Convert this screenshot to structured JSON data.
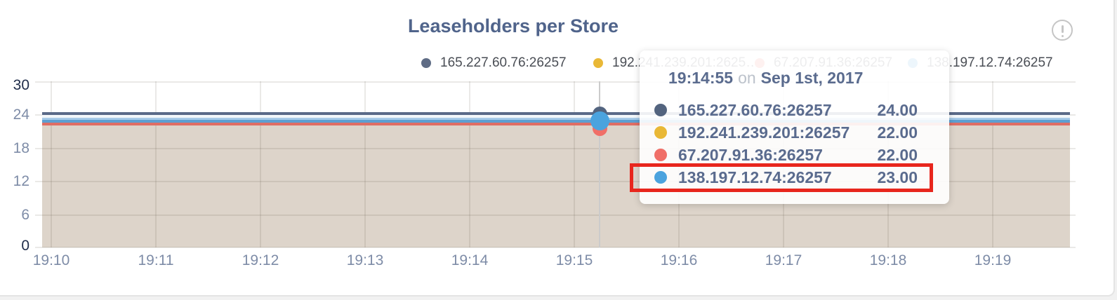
{
  "header": {
    "title": "Leaseholders per Store"
  },
  "legend": {
    "items": [
      {
        "label": "165.227.60.76:26257",
        "color": "#5f6c85"
      },
      {
        "label": "192.241.239.201:2625…",
        "color": "#e9b836"
      },
      {
        "label": "67.207.91.36:26257",
        "color": "#f06f68"
      },
      {
        "label": "138.197.12.74:26257",
        "color": "#4ba3de"
      }
    ]
  },
  "y_axis": {
    "ticks": [
      "30",
      "24",
      "18",
      "12",
      "6",
      "0"
    ]
  },
  "x_axis": {
    "ticks": [
      "19:10",
      "19:11",
      "19:12",
      "19:13",
      "19:14",
      "19:15",
      "19:16",
      "19:17",
      "19:18",
      "19:19"
    ]
  },
  "tooltip": {
    "time": "19:14:55",
    "conjunction": "on",
    "date": "Sep 1st, 2017",
    "rows": [
      {
        "label": "165.227.60.76:26257",
        "value": "24.00",
        "color": "#53647f",
        "highlighted": false
      },
      {
        "label": "192.241.239.201:26257",
        "value": "22.00",
        "color": "#e9b836",
        "highlighted": false
      },
      {
        "label": "67.207.91.36:26257",
        "value": "22.00",
        "color": "#f06f68",
        "highlighted": false
      },
      {
        "label": "138.197.12.74:26257",
        "value": "23.00",
        "color": "#4ba3de",
        "highlighted": true
      }
    ],
    "highlight_color": "#e8261d"
  },
  "chart_data": {
    "type": "area",
    "title": "Leaseholders per Store",
    "x": [
      "19:10",
      "19:11",
      "19:12",
      "19:13",
      "19:14",
      "19:15",
      "19:16",
      "19:17",
      "19:18",
      "19:19"
    ],
    "series": [
      {
        "name": "165.227.60.76:26257",
        "color": "#5a6a88",
        "values": [
          24,
          24,
          24,
          24,
          24,
          24,
          24,
          24,
          24,
          24
        ]
      },
      {
        "name": "192.241.239.201:26257",
        "color": "#e9b836",
        "values": [
          22,
          22,
          22,
          22,
          22,
          22,
          22,
          22,
          22,
          22
        ]
      },
      {
        "name": "67.207.91.36:26257",
        "color": "#df6d64",
        "values": [
          22,
          22,
          22,
          22,
          22,
          22,
          22,
          22,
          22,
          22
        ]
      },
      {
        "name": "138.197.12.74:26257",
        "color": "#4ba3de",
        "values": [
          23,
          23,
          23,
          23,
          23,
          23,
          23,
          23,
          23,
          23
        ]
      }
    ],
    "ylim": [
      0,
      30
    ],
    "yticks": [
      0,
      6,
      12,
      18,
      24,
      30
    ],
    "grid": true,
    "legend_position": "top",
    "area_fill_color": "#ddd4ca",
    "hover_point": {
      "time": "19:14:55",
      "date": "Sep 1st, 2017",
      "values": {
        "165.227.60.76:26257": 24.0,
        "192.241.239.201:26257": 22.0,
        "67.207.91.36:26257": 22.0,
        "138.197.12.74:26257": 23.0
      }
    }
  }
}
